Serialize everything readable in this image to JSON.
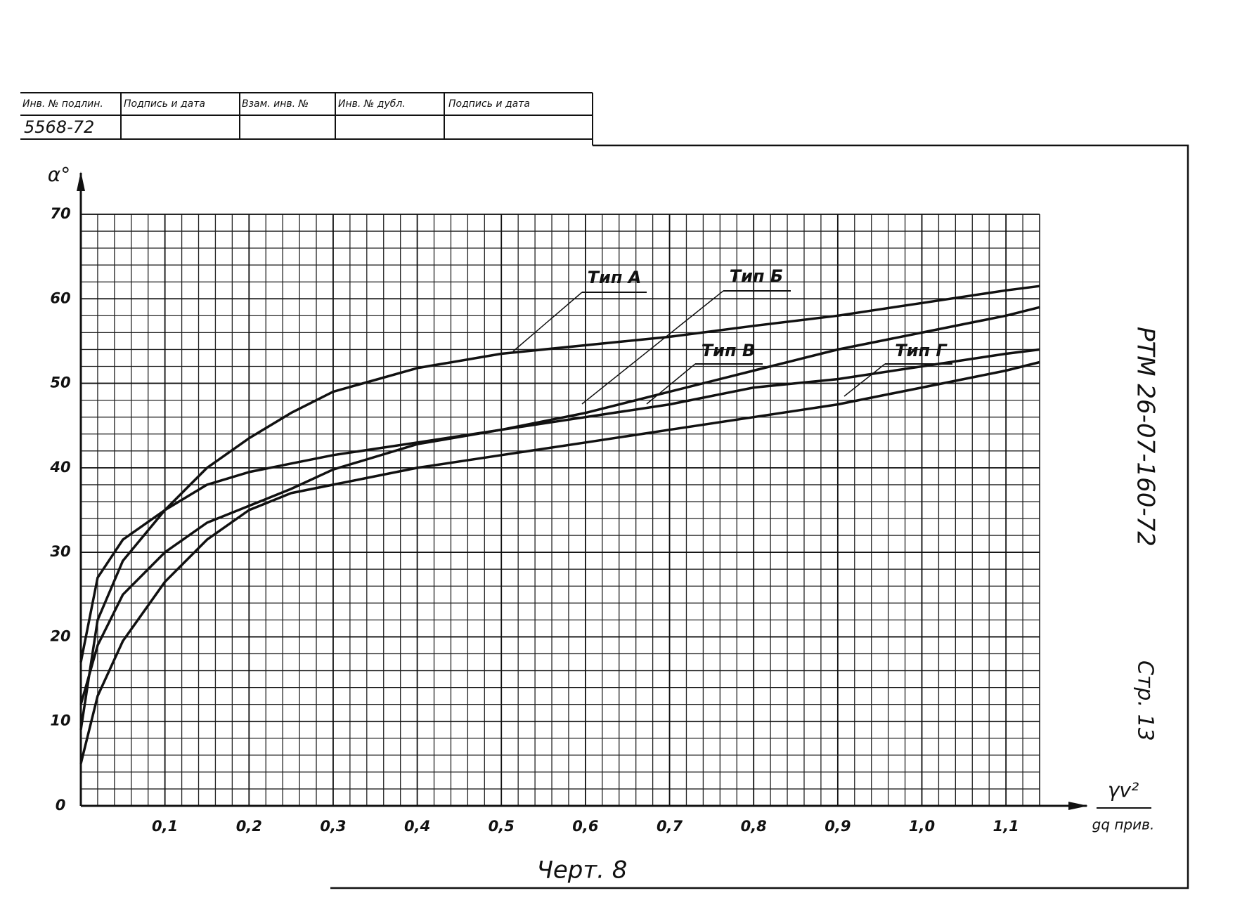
{
  "stamp": {
    "headers": [
      "Инв. № подлин.",
      "Подпись и дата",
      "Взам. инв. №",
      "Инв. № дубл.",
      "Подпись и дата"
    ],
    "values": [
      "5568-72"
    ]
  },
  "document_code": "РТМ 26-07-160-72",
  "page": "Стр. 13",
  "chart_data": {
    "type": "line",
    "caption": "Черт. 8",
    "ylabel": "α°",
    "xlabel_top": "γv²",
    "xlabel_bottom": "gq прив.",
    "x": [
      0,
      0.02,
      0.05,
      0.1,
      0.15,
      0.2,
      0.25,
      0.3,
      0.4,
      0.5,
      0.6,
      0.7,
      0.8,
      0.9,
      1.0,
      1.1,
      1.14
    ],
    "series": [
      {
        "name": "Тип А",
        "color": "#111111",
        "values": [
          9,
          22,
          29,
          35,
          40,
          43.5,
          46.5,
          49,
          51.8,
          53.5,
          54.5,
          55.5,
          56.8,
          58,
          59.5,
          61,
          61.5
        ]
      },
      {
        "name": "Тип Б",
        "color": "#111111",
        "values": [
          12,
          19,
          25,
          30,
          33.5,
          35.5,
          37.5,
          39.8,
          42.8,
          44.5,
          46.5,
          49,
          51.5,
          54,
          56,
          58,
          59
        ]
      },
      {
        "name": "Тип В",
        "color": "#111111",
        "values": [
          17,
          27,
          31.5,
          35,
          38,
          39.5,
          40.5,
          41.5,
          43,
          44.5,
          46,
          47.5,
          49.5,
          50.5,
          52,
          53.5,
          54
        ]
      },
      {
        "name": "Тип Г",
        "color": "#111111",
        "values": [
          5,
          13,
          19.5,
          26.5,
          31.5,
          35,
          37,
          38,
          40,
          41.5,
          43,
          44.5,
          46,
          47.5,
          49.5,
          51.5,
          52.5
        ]
      }
    ],
    "xlim": [
      0,
      1.14
    ],
    "ylim": [
      0,
      70
    ],
    "xticks": [
      {
        "value": 0.1,
        "label": "0,1"
      },
      {
        "value": 0.2,
        "label": "0,2"
      },
      {
        "value": 0.3,
        "label": "0,3"
      },
      {
        "value": 0.4,
        "label": "0,4"
      },
      {
        "value": 0.5,
        "label": "0,5"
      },
      {
        "value": 0.6,
        "label": "0,6"
      },
      {
        "value": 0.7,
        "label": "0,7"
      },
      {
        "value": 0.8,
        "label": "0,8"
      },
      {
        "value": 0.9,
        "label": "0,9"
      },
      {
        "value": 1.0,
        "label": "1,0"
      },
      {
        "value": 1.1,
        "label": "1,1"
      }
    ],
    "yticks": [
      0,
      10,
      20,
      30,
      40,
      50,
      60,
      70
    ],
    "grid": true
  }
}
